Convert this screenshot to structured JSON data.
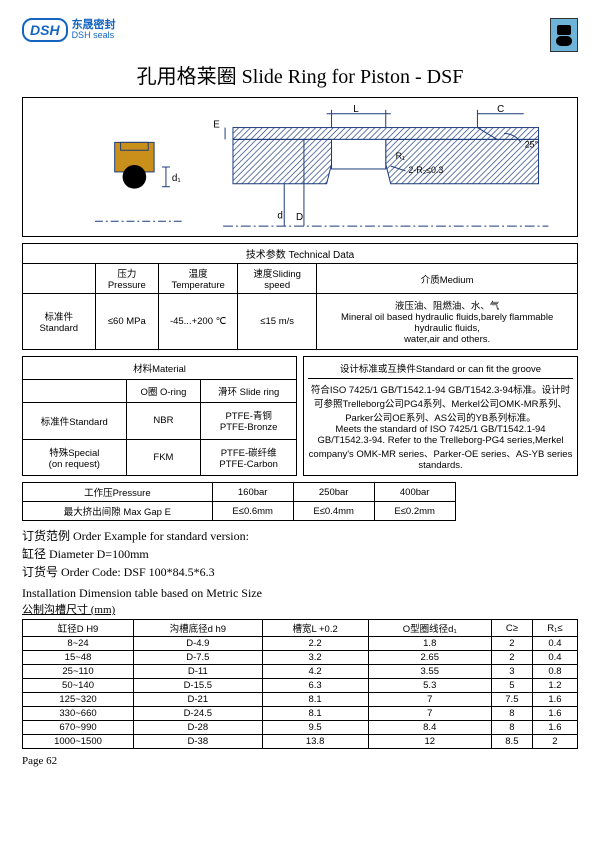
{
  "logo": {
    "badge": "DSH",
    "line1": "东晟密封",
    "line2": "DSH seals"
  },
  "title": "孔用格莱圈 Slide Ring for Piston - DSF",
  "diagram": {
    "labels": {
      "d1": "d₁",
      "L": "L",
      "E": "E",
      "C": "C",
      "D": "D",
      "d": "d",
      "R1": "R₁",
      "R2": "2-R₂≤0.3",
      "angle": "25°"
    },
    "colors": {
      "hatch": "#b8860b",
      "oring": "#000",
      "lines": "#1a3a7a"
    }
  },
  "tech": {
    "header": "技术参数 Technical Data",
    "cols": [
      "",
      "压力Pressure",
      "温度Temperature",
      "速度Sliding speed",
      "介质Medium"
    ],
    "row_label": "标准件Standard",
    "pressure": "≤60 MPa",
    "temp": "-45...+200 ℃",
    "speed": "≤15 m/s",
    "medium": "液压油、阻燃油、水、气\nMineral oil based hydraulic fluids,barely flammable hydraulic fluids,\nwater,air and others."
  },
  "material": {
    "header": "材料Material",
    "cols": [
      "",
      "O圈 O-ring",
      "滑环 Slide ring"
    ],
    "rows": [
      {
        "label": "标准件Standard",
        "oring": "NBR",
        "slide": "PTFE-青铜\nPTFE-Bronze"
      },
      {
        "label": "特殊Special\n(on request)",
        "oring": "FKM",
        "slide": "PTFE-碳纤维\nPTFE-Carbon"
      }
    ]
  },
  "standard_box": {
    "header": "设计标准或互换件Standard or can fit the groove",
    "body": "符合ISO 7425/1   GB/T1542.1-94   GB/T1542.3-94标准。设计时可参照Trelleborg公司PG4系列、Merkel公司OMK-MR系列、Parker公司OE系列、AS公司的YB系列标准。\nMeets the standard of  ISO 7425/1 GB/T1542.1-94 GB/T1542.3-94. Refer to the Trelleborg-PG4 series,Merkel company's OMK-MR series、Parker-OE series、AS-YB series standards."
  },
  "gap": {
    "cols": [
      "工作压Pressure",
      "160bar",
      "250bar",
      "400bar"
    ],
    "row": [
      "最大挤出间隙 Max Gap E",
      "E≤0.6mm",
      "E≤0.4mm",
      "E≤0.2mm"
    ]
  },
  "order": {
    "l1": "订货范例  Order Example for standard version:",
    "l2": "缸径  Diameter D=100mm",
    "l3": "订货号 Order Code: DSF 100*84.5*6.3"
  },
  "install_hdr": "Installation Dimension table based on Metric Size",
  "install_sub": "公制沟槽尺寸 (mm)",
  "dims": {
    "cols": [
      "缸径D  H9",
      "沟槽底径d  h9",
      "槽宽L  +0.2",
      "O型圈线径d₁",
      "C≥",
      "R₁≤"
    ],
    "rows": [
      [
        "8~24",
        "D-4.9",
        "2.2",
        "1.8",
        "2",
        "0.4"
      ],
      [
        "15~48",
        "D-7.5",
        "3.2",
        "2.65",
        "2",
        "0.4"
      ],
      [
        "25~110",
        "D-11",
        "4.2",
        "3.55",
        "3",
        "0.8"
      ],
      [
        "50~140",
        "D-15.5",
        "6.3",
        "5.3",
        "5",
        "1.2"
      ],
      [
        "125~320",
        "D-21",
        "8.1",
        "7",
        "7.5",
        "1.6"
      ],
      [
        "330~660",
        "D-24.5",
        "8.1",
        "7",
        "8",
        "1.6"
      ],
      [
        "670~990",
        "D-28",
        "9.5",
        "8.4",
        "8",
        "1.6"
      ],
      [
        "1000~1500",
        "D-38",
        "13.8",
        "12",
        "8.5",
        "2"
      ]
    ]
  },
  "page": "Page  62"
}
